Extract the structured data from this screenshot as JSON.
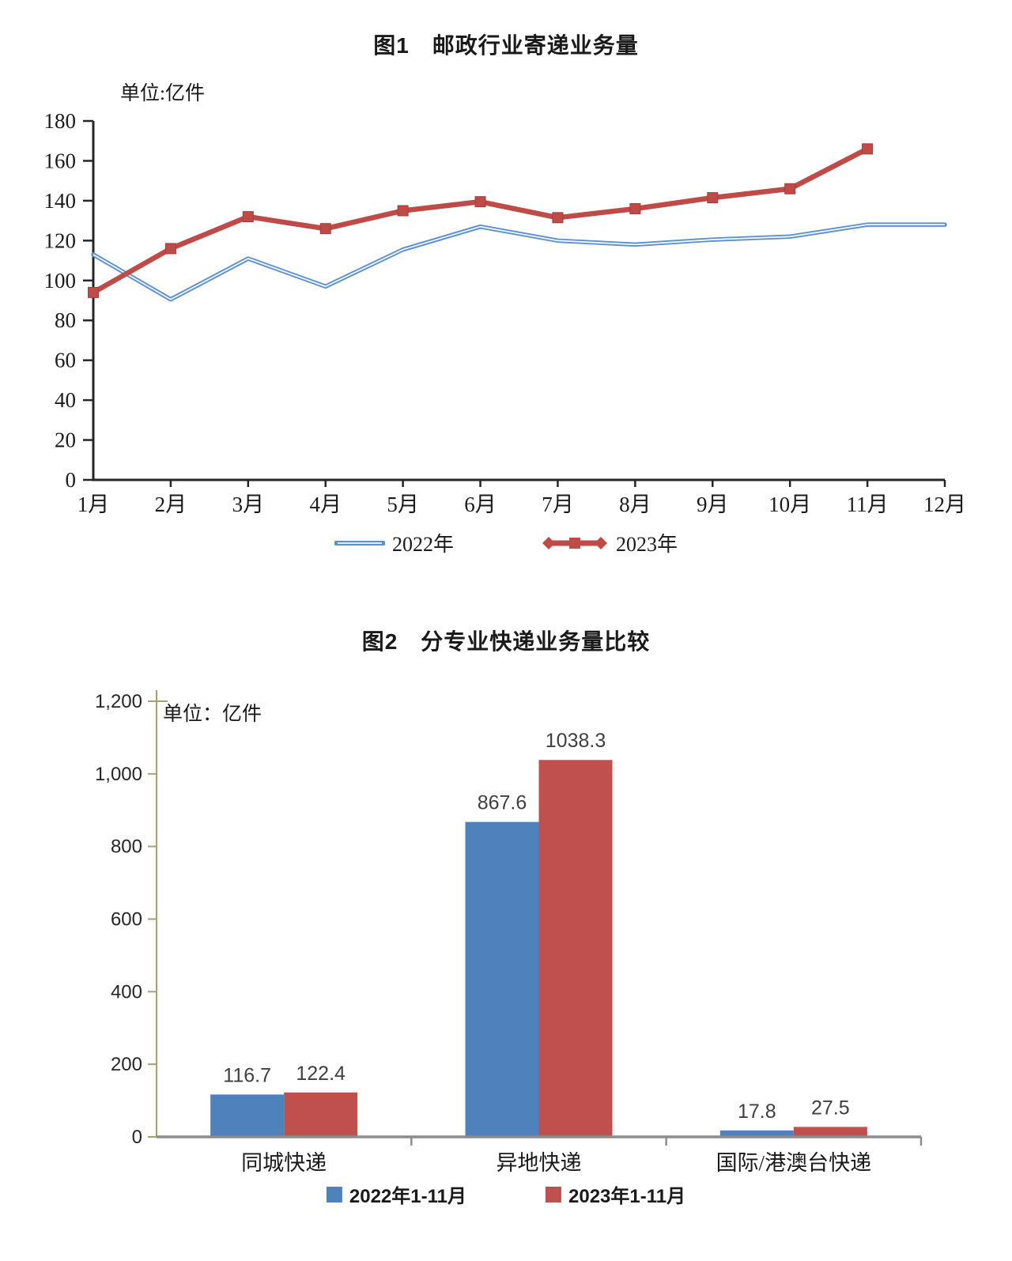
{
  "page": {
    "background": "#FFFFFF"
  },
  "colors": {
    "axis_dark": "#262626",
    "axis_olive": "#A6A06B",
    "baseline_gray": "#8C8C8C",
    "label_gray": "#3F3F3F",
    "line_blue": "#5B8FD0",
    "line_blue_core": "#F2F7FC",
    "line_red": "#BE4B48",
    "bar_blue": "#4F81BD",
    "bar_red": "#C0504D"
  },
  "chart_data": [
    {
      "type": "line",
      "title": "图1　邮政行业寄递业务量",
      "unit_label": "单位:亿件",
      "categories": [
        "1月",
        "2月",
        "3月",
        "4月",
        "5月",
        "6月",
        "7月",
        "8月",
        "9月",
        "10月",
        "11月",
        "12月"
      ],
      "series": [
        {
          "name": "2022年",
          "color": "#5B8FD0",
          "marker": "none",
          "values": [
            113,
            90.5,
            111,
            97,
            115.5,
            127,
            120,
            118,
            120.5,
            122,
            128,
            128
          ]
        },
        {
          "name": "2023年",
          "color": "#BE4B48",
          "marker": "square",
          "values": [
            94,
            116,
            132,
            126,
            135,
            139.5,
            131.5,
            136,
            141.5,
            146,
            166
          ]
        }
      ],
      "ylim": [
        0,
        180
      ],
      "ytick_step": 20,
      "ytick_labels": [
        "0",
        "20",
        "40",
        "60",
        "80",
        "100",
        "120",
        "140",
        "160",
        "180"
      ],
      "grid": false,
      "legend_position": "bottom"
    },
    {
      "type": "bar",
      "title": "图2　分专业快递业务量比较",
      "unit_label": "单位：亿件",
      "categories": [
        "同城快递",
        "异地快递",
        "国际/港澳台快递"
      ],
      "series": [
        {
          "name": "2022年1-11月",
          "color": "#4F81BD",
          "values": [
            116.7,
            867.6,
            17.8
          ]
        },
        {
          "name": "2023年1-11月",
          "color": "#C0504D",
          "values": [
            122.4,
            1038.3,
            27.5
          ]
        }
      ],
      "data_labels": [
        [
          "116.7",
          "867.6",
          "17.8"
        ],
        [
          "122.4",
          "1038.3",
          "27.5"
        ]
      ],
      "ylim": [
        0,
        1200
      ],
      "ytick_step": 200,
      "ytick_labels": [
        "0",
        "200",
        "400",
        "600",
        "800",
        "1,000",
        "1,200"
      ],
      "grid": false,
      "legend_position": "bottom"
    }
  ]
}
